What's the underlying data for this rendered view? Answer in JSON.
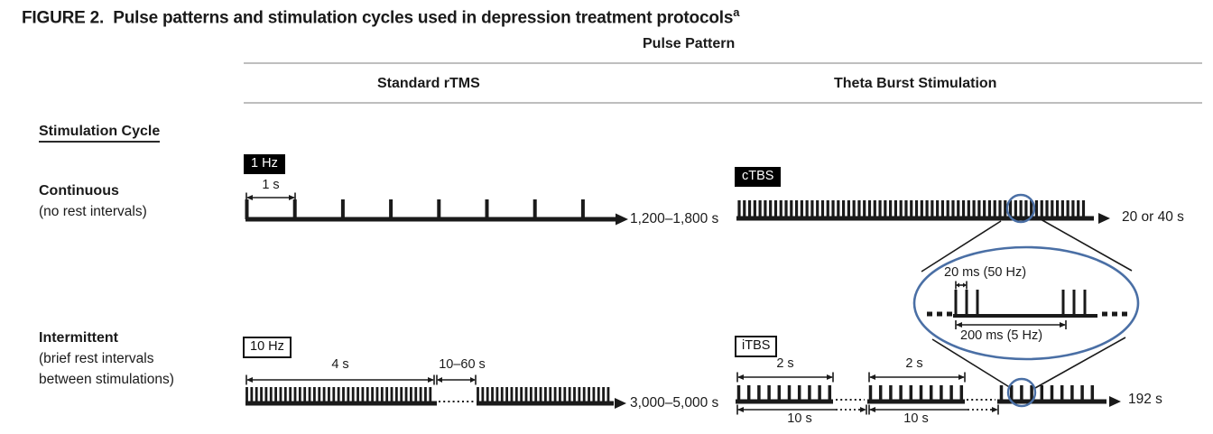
{
  "figure": {
    "title": "FIGURE 2.  Pulse patterns and stimulation cycles used in depression treatment protocols",
    "title_superscript": "a"
  },
  "header": {
    "column_group": "Pulse Pattern",
    "column_standard": "Standard rTMS",
    "column_tbs": "Theta Burst Stimulation",
    "row_group": "Stimulation Cycle"
  },
  "rows": {
    "continuous": {
      "label": "Continuous",
      "sublabel": "(no rest intervals)"
    },
    "intermittent": {
      "label": "Intermittent",
      "sublabel_line1": "(brief rest intervals",
      "sublabel_line2": "between stimulations)"
    }
  },
  "panels": {
    "standard_1hz": {
      "tag": "1 Hz",
      "pulse_interval": "1 s",
      "session_duration": "1,200–1,800 s"
    },
    "ctbs": {
      "tag": "cTBS",
      "session_duration": "20 or 40 s"
    },
    "standard_10hz": {
      "tag": "10 Hz",
      "train_duration": "4 s",
      "rest_interval": "10–60 s",
      "session_duration": "3,000–5,000 s"
    },
    "itbs": {
      "tag": "iTBS",
      "train_duration_1": "2 s",
      "train_duration_2": "2 s",
      "cycle_duration_1": "10 s",
      "cycle_duration_2": "10 s",
      "session_duration": "192 s"
    },
    "burst_detail": {
      "intra_burst": "20 ms (50 Hz)",
      "inter_burst": "200 ms (5 Hz)"
    }
  },
  "colors": {
    "ink": "#1a1a1a",
    "rule_gray": "#a8a8a8",
    "accent_blue": "#4a6fa5"
  }
}
